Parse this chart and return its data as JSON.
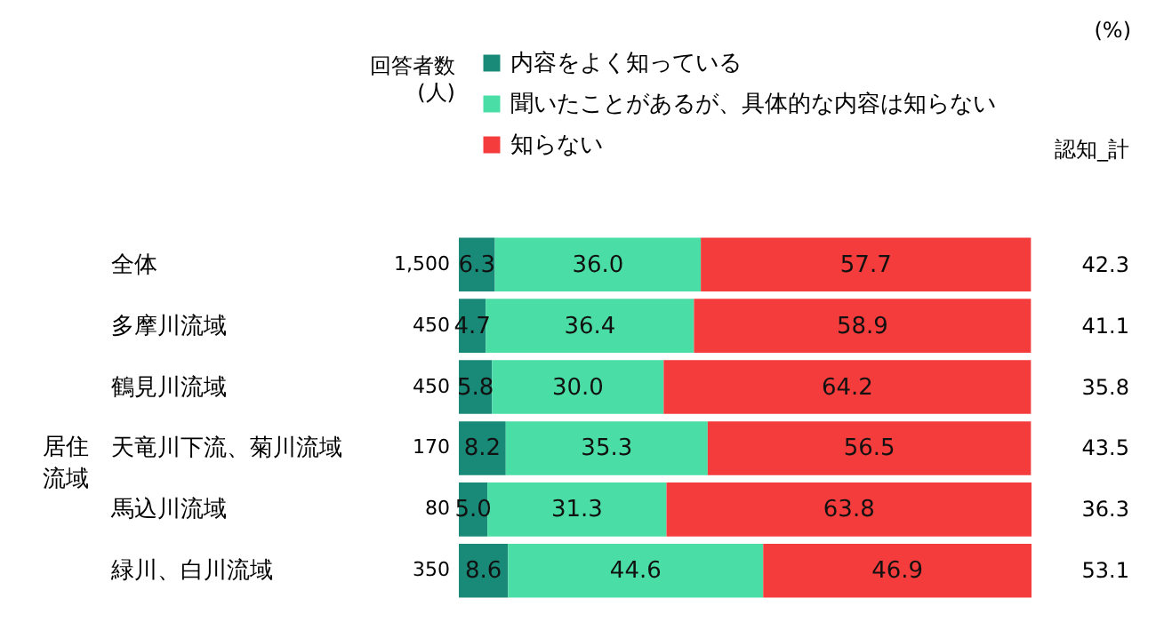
{
  "chart_data": {
    "type": "bar",
    "orientation": "horizontal",
    "stacked": true,
    "legend": "top",
    "tick_labels": "y",
    "categories": [
      "全体",
      "多摩川流域",
      "鶴見川流域",
      "天竜川下流、菊川流域",
      "馬込川流域",
      "緑川、白川流域"
    ],
    "series": [
      {
        "name": "内容をよく知っている",
        "color": "#1a8a78",
        "values": [
          6.3,
          4.7,
          5.8,
          8.2,
          5.0,
          8.6
        ],
        "value_labels": [
          "6.3",
          "4.7",
          "5.8",
          "8.2",
          "5.0",
          "8.6"
        ]
      },
      {
        "name": "聞いたことがあるが、具体的な内容は知らない",
        "color": "#4adea6",
        "values": [
          36.0,
          36.4,
          30.0,
          35.3,
          31.3,
          44.6
        ],
        "value_labels": [
          "36.0",
          "36.4",
          "30.0",
          "35.3",
          "31.3",
          "44.6"
        ]
      },
      {
        "name": "知らない",
        "color": "#f43c3c",
        "values": [
          57.7,
          58.9,
          64.2,
          56.5,
          63.8,
          46.9
        ],
        "value_labels": [
          "57.7",
          "58.9",
          "64.2",
          "56.5",
          "63.8",
          "46.9"
        ]
      }
    ],
    "annotations": [
      "(%)",
      "回答者数",
      "(人)",
      "認知_計",
      "居住",
      "流域",
      "1,500",
      "450",
      "450",
      "170",
      "80",
      "350",
      "42.3",
      "41.1",
      "35.8",
      "43.5",
      "36.3",
      "53.1"
    ]
  }
}
